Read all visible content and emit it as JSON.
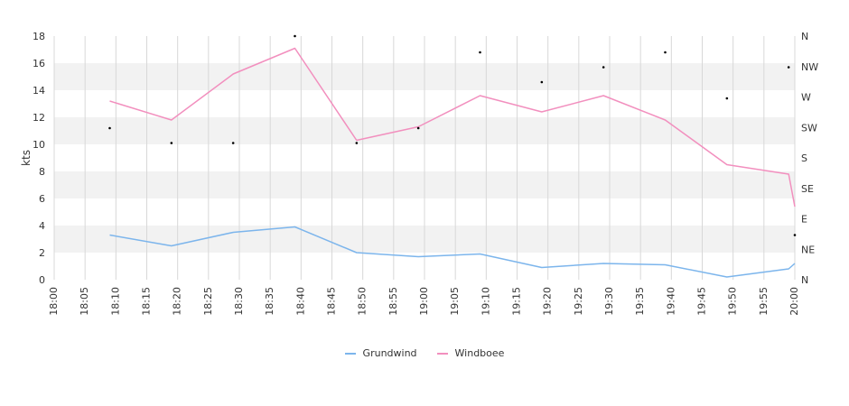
{
  "chart_data": {
    "type": "line",
    "ylabel": "kts",
    "ylim": [
      0,
      18
    ],
    "yticks": [
      0,
      2,
      4,
      6,
      8,
      10,
      12,
      14,
      16,
      18
    ],
    "x_ticks": [
      "18:00",
      "18:05",
      "18:10",
      "18:15",
      "18:20",
      "18:25",
      "18:30",
      "18:35",
      "18:40",
      "18:45",
      "18:50",
      "18:55",
      "19:00",
      "19:05",
      "19:10",
      "19:15",
      "19:20",
      "19:25",
      "19:30",
      "19:35",
      "19:40",
      "19:45",
      "19:50",
      "19:55",
      "20:00"
    ],
    "right_axis_ticks": [
      "N",
      "NE",
      "E",
      "SE",
      "S",
      "SW",
      "W",
      "NW",
      "N"
    ],
    "grid": true,
    "legend_position": "bottom",
    "series": [
      {
        "name": "Grundwind",
        "color": "#7cb5ec",
        "x": [
          "18:09",
          "18:19",
          "18:29",
          "18:39",
          "18:49",
          "18:59",
          "19:09",
          "19:19",
          "19:29",
          "19:39",
          "19:49",
          "19:59",
          "20:00"
        ],
        "values": [
          3.3,
          2.5,
          3.5,
          3.9,
          2.0,
          1.7,
          1.9,
          0.9,
          1.2,
          1.1,
          0.2,
          0.8,
          1.2
        ]
      },
      {
        "name": "Windboee",
        "color": "#f28fbe",
        "x": [
          "18:09",
          "18:19",
          "18:29",
          "18:39",
          "18:49",
          "18:59",
          "19:09",
          "19:19",
          "19:29",
          "19:39",
          "19:49",
          "19:59",
          "20:00"
        ],
        "values": [
          13.2,
          11.8,
          15.2,
          17.1,
          10.3,
          11.3,
          13.6,
          12.4,
          13.6,
          11.8,
          8.5,
          7.8,
          5.4
        ]
      }
    ],
    "direction_markers": {
      "x": [
        "18:09",
        "18:19",
        "18:29",
        "18:39",
        "18:49",
        "18:59",
        "19:09",
        "19:19",
        "19:29",
        "19:39",
        "19:49",
        "19:59",
        "20:00"
      ],
      "values": [
        11.2,
        10.1,
        10.1,
        18.0,
        10.1,
        11.2,
        16.8,
        14.6,
        15.7,
        16.8,
        13.4,
        15.7,
        3.3
      ]
    }
  }
}
